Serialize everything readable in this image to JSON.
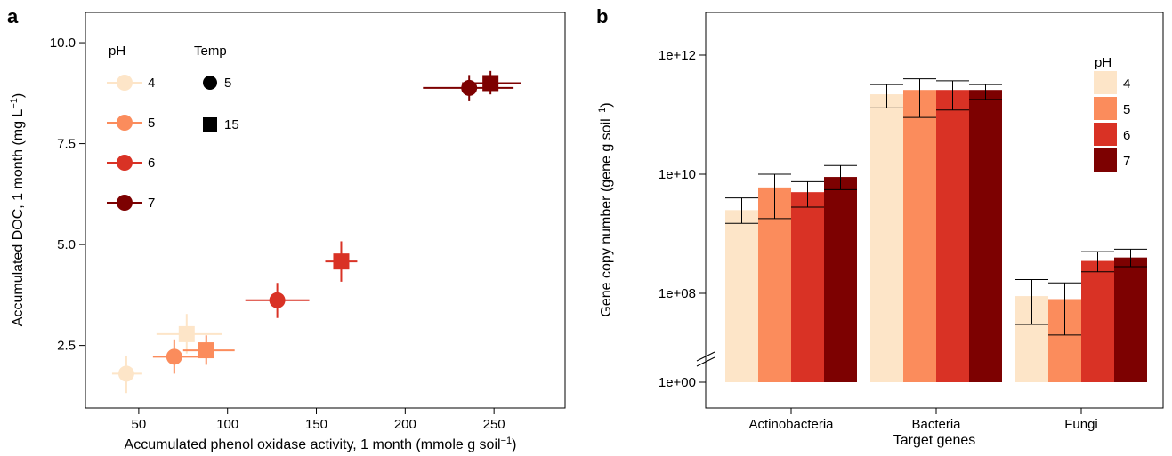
{
  "colors": {
    "pH4": "#fde5c8",
    "pH5": "#fb8c5c",
    "pH6": "#d93225",
    "pH7": "#7d0101",
    "ink": "#000000"
  },
  "chart_data": [
    {
      "panel": "a",
      "type": "scatter",
      "xlabel": "Accumulated phenol oxidase activity, 1 month (mmole g soil",
      "xlabel_sup": "−1",
      "xlabel_end": ")",
      "ylabel": "Accumulated DOC, 1 month (mg L",
      "ylabel_sup": "−1",
      "ylabel_end": ")",
      "xlim": [
        20,
        290
      ],
      "ylim": [
        0.95,
        10.75
      ],
      "x_ticks": [
        50,
        100,
        150,
        200,
        250
      ],
      "x_tick_labels": [
        "50",
        "100",
        "150",
        "200",
        "250"
      ],
      "y_ticks": [
        2.5,
        5.0,
        7.5,
        10.0
      ],
      "y_tick_labels": [
        "2.5",
        "5.0",
        "7.5",
        "10.0"
      ],
      "grid": false,
      "legend": {
        "ph_title": "pH",
        "ph_items": [
          {
            "label": "4",
            "color": "#fde5c8"
          },
          {
            "label": "5",
            "color": "#fb8c5c"
          },
          {
            "label": "6",
            "color": "#d93225"
          },
          {
            "label": "7",
            "color": "#7d0101"
          }
        ],
        "temp_title": "Temp",
        "temp_items": [
          {
            "label": "5",
            "marker": "circle"
          },
          {
            "label": "15",
            "marker": "square"
          }
        ],
        "placement": "top-left"
      },
      "points": [
        {
          "ph": "4",
          "temp": "5",
          "marker": "circle",
          "color": "#fde5c8",
          "x": 43,
          "y": 1.8,
          "xerr": [
            35,
            52
          ],
          "yerr": [
            1.32,
            2.25
          ]
        },
        {
          "ph": "4",
          "temp": "15",
          "marker": "square",
          "color": "#fde5c8",
          "x": 77,
          "y": 2.78,
          "xerr": [
            60,
            97
          ],
          "yerr": [
            2.3,
            3.28
          ]
        },
        {
          "ph": "5",
          "temp": "5",
          "marker": "circle",
          "color": "#fb8c5c",
          "x": 70,
          "y": 2.22,
          "xerr": [
            58,
            86
          ],
          "yerr": [
            1.8,
            2.65
          ]
        },
        {
          "ph": "5",
          "temp": "15",
          "marker": "square",
          "color": "#fb8c5c",
          "x": 88,
          "y": 2.38,
          "xerr": [
            75,
            104
          ],
          "yerr": [
            2.02,
            2.75
          ]
        },
        {
          "ph": "6",
          "temp": "5",
          "marker": "circle",
          "color": "#d93225",
          "x": 128,
          "y": 3.62,
          "xerr": [
            110,
            146
          ],
          "yerr": [
            3.18,
            4.05
          ]
        },
        {
          "ph": "6",
          "temp": "15",
          "marker": "square",
          "color": "#d93225",
          "x": 164,
          "y": 4.58,
          "xerr": [
            155,
            173
          ],
          "yerr": [
            4.08,
            5.08
          ]
        },
        {
          "ph": "7",
          "temp": "5",
          "marker": "circle",
          "color": "#7d0101",
          "x": 236,
          "y": 8.88,
          "xerr": [
            210,
            261
          ],
          "yerr": [
            8.55,
            9.2
          ]
        },
        {
          "ph": "7",
          "temp": "15",
          "marker": "square",
          "color": "#7d0101",
          "x": 248,
          "y": 9.0,
          "xerr": [
            232,
            265
          ],
          "yerr": [
            8.72,
            9.3
          ]
        }
      ]
    },
    {
      "panel": "b",
      "type": "bar",
      "xlabel": "Target genes",
      "ylabel": "Gene copy number (gene g soil",
      "ylabel_sup": "−1",
      "ylabel_end": ")",
      "y_scale": "log10 with axis break below 1e+07",
      "y_ticks": [
        1.0,
        100000000.0,
        10000000000.0,
        1000000000000.0
      ],
      "y_tick_labels": [
        "1e+00",
        "1e+08",
        "1e+10",
        "1e+12"
      ],
      "categories": [
        "Actinobacteria",
        "Bacteria",
        "Fungi"
      ],
      "legend": {
        "title": "pH",
        "placement": "top-right"
      },
      "series": [
        {
          "name": "4",
          "color": "#fde5c8",
          "values": [
            2500000000.0,
            220000000000.0,
            90000000.0
          ],
          "err_low": [
            1500000000.0,
            130000000000.0,
            30000000.0
          ],
          "err_high": [
            4000000000.0,
            320000000000.0,
            170000000.0
          ]
        },
        {
          "name": "5",
          "color": "#fb8c5c",
          "values": [
            6000000000.0,
            260000000000.0,
            80000000.0
          ],
          "err_low": [
            1800000000.0,
            90000000000.0,
            20000000.0
          ],
          "err_high": [
            10000000000.0,
            400000000000.0,
            150000000.0
          ]
        },
        {
          "name": "6",
          "color": "#d93225",
          "values": [
            5000000000.0,
            260000000000.0,
            350000000.0
          ],
          "err_low": [
            2800000000.0,
            120000000000.0,
            230000000.0
          ],
          "err_high": [
            7500000000.0,
            370000000000.0,
            500000000.0
          ]
        },
        {
          "name": "7",
          "color": "#7d0101",
          "values": [
            9000000000.0,
            260000000000.0,
            400000000.0
          ],
          "err_low": [
            5500000000.0,
            180000000000.0,
            280000000.0
          ],
          "err_high": [
            14000000000.0,
            320000000000.0,
            550000000.0
          ]
        }
      ]
    }
  ]
}
